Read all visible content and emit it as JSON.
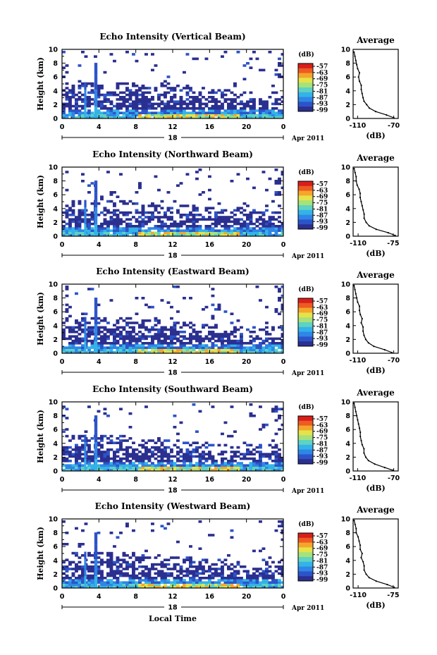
{
  "chart_data": [
    {
      "type": "heatmap",
      "title": "Echo Intensity (Vertical Beam)",
      "ylabel": "Height (km)",
      "x_ticks": [
        "0",
        "4",
        "8",
        "12",
        "16",
        "20",
        "0"
      ],
      "y_ticks": [
        "0",
        "2",
        "4",
        "6",
        "8",
        "10"
      ],
      "xlim": [
        0,
        24
      ],
      "ylim": [
        0,
        10
      ],
      "date_day": "18",
      "date_label": "Apr 2011",
      "colorbar": {
        "unit": "(dB)",
        "ticks": [
          "-57",
          "-63",
          "-69",
          "-75",
          "-81",
          "-87",
          "-93",
          "-99"
        ]
      },
      "profile": {
        "title": "Average",
        "xlabel": "(dB)",
        "x_ticks": [
          "-110",
          "-70"
        ],
        "xlim": [
          -115,
          -65
        ],
        "ylim": [
          0,
          10
        ],
        "y_ticks": [
          "0",
          "2",
          "4",
          "6",
          "8",
          "10"
        ],
        "points": [
          [
            -70,
            0.1
          ],
          [
            -78,
            0.5
          ],
          [
            -90,
            1.0
          ],
          [
            -97,
            1.5
          ],
          [
            -100,
            2.0
          ],
          [
            -103,
            2.5
          ],
          [
            -104,
            3.0
          ],
          [
            -105,
            3.6
          ],
          [
            -106,
            4.2
          ],
          [
            -106,
            4.8
          ],
          [
            -108,
            5.4
          ],
          [
            -109,
            6.0
          ],
          [
            -108,
            6.6
          ],
          [
            -110,
            7.2
          ],
          [
            -111,
            7.8
          ],
          [
            -112,
            8.4
          ],
          [
            -113,
            9.0
          ],
          [
            -114,
            9.6
          ]
        ]
      }
    },
    {
      "type": "heatmap",
      "title": "Echo Intensity (Northward Beam)",
      "ylabel": "Height (km)",
      "x_ticks": [
        "0",
        "4",
        "8",
        "12",
        "16",
        "20",
        "0"
      ],
      "y_ticks": [
        "0",
        "2",
        "4",
        "6",
        "8",
        "10"
      ],
      "xlim": [
        0,
        24
      ],
      "ylim": [
        0,
        10
      ],
      "date_day": "18",
      "date_label": "Apr 2011",
      "colorbar": {
        "unit": "(dB)",
        "ticks": [
          "-57",
          "-63",
          "-69",
          "-75",
          "-81",
          "-87",
          "-93",
          "-99"
        ]
      },
      "profile": {
        "title": "Average",
        "xlabel": "(dB)",
        "x_ticks": [
          "-110",
          "-75"
        ],
        "xlim": [
          -115,
          -70
        ],
        "ylim": [
          0,
          10
        ],
        "y_ticks": [
          "0",
          "2",
          "4",
          "6",
          "8",
          "10"
        ],
        "points": [
          [
            -73,
            0.1
          ],
          [
            -80,
            0.5
          ],
          [
            -92,
            1.0
          ],
          [
            -99,
            1.5
          ],
          [
            -102,
            2.0
          ],
          [
            -104,
            2.6
          ],
          [
            -104,
            3.2
          ],
          [
            -105,
            3.8
          ],
          [
            -106,
            4.4
          ],
          [
            -107,
            5.0
          ],
          [
            -108,
            5.6
          ],
          [
            -108,
            6.2
          ],
          [
            -109,
            6.8
          ],
          [
            -111,
            7.4
          ],
          [
            -112,
            8.0
          ],
          [
            -112,
            8.6
          ],
          [
            -113,
            9.2
          ],
          [
            -114,
            9.8
          ]
        ]
      }
    },
    {
      "type": "heatmap",
      "title": "Echo Intensity (Eastward Beam)",
      "ylabel": "Height (km)",
      "x_ticks": [
        "0",
        "4",
        "8",
        "12",
        "16",
        "20",
        "0"
      ],
      "y_ticks": [
        "0",
        "2",
        "4",
        "6",
        "8",
        "10"
      ],
      "xlim": [
        0,
        24
      ],
      "ylim": [
        0,
        10
      ],
      "date_day": "18",
      "date_label": "Apr 2011",
      "colorbar": {
        "unit": "(dB)",
        "ticks": [
          "-57",
          "-63",
          "-69",
          "-75",
          "-81",
          "-87",
          "-93",
          "-99"
        ]
      },
      "profile": {
        "title": "Average",
        "xlabel": "(dB)",
        "x_ticks": [
          "-110",
          "-70"
        ],
        "xlim": [
          -115,
          -65
        ],
        "ylim": [
          0,
          10
        ],
        "y_ticks": [
          "0",
          "2",
          "4",
          "6",
          "8",
          "10"
        ],
        "points": [
          [
            -72,
            0.1
          ],
          [
            -80,
            0.5
          ],
          [
            -92,
            1.0
          ],
          [
            -98,
            1.5
          ],
          [
            -101,
            2.0
          ],
          [
            -103,
            2.6
          ],
          [
            -104,
            3.2
          ],
          [
            -104,
            3.8
          ],
          [
            -106,
            4.4
          ],
          [
            -105,
            5.0
          ],
          [
            -107,
            5.6
          ],
          [
            -108,
            6.2
          ],
          [
            -108,
            6.8
          ],
          [
            -110,
            7.4
          ],
          [
            -111,
            8.0
          ],
          [
            -112,
            8.6
          ],
          [
            -113,
            9.2
          ],
          [
            -114,
            9.8
          ]
        ]
      }
    },
    {
      "type": "heatmap",
      "title": "Echo Intensity (Southward Beam)",
      "ylabel": "Height (km)",
      "x_ticks": [
        "0",
        "4",
        "8",
        "12",
        "16",
        "20",
        "0"
      ],
      "y_ticks": [
        "0",
        "2",
        "4",
        "6",
        "8",
        "10"
      ],
      "xlim": [
        0,
        24
      ],
      "ylim": [
        0,
        10
      ],
      "date_day": "18",
      "date_label": "Apr 2011",
      "colorbar": {
        "unit": "(dB)",
        "ticks": [
          "-57",
          "-63",
          "-69",
          "-75",
          "-81",
          "-87",
          "-93",
          "-99"
        ]
      },
      "profile": {
        "title": "Average",
        "xlabel": "(dB)",
        "x_ticks": [
          "-110",
          "-70"
        ],
        "xlim": [
          -115,
          -65
        ],
        "ylim": [
          0,
          10
        ],
        "y_ticks": [
          "0",
          "2",
          "4",
          "6",
          "8",
          "10"
        ],
        "points": [
          [
            -71,
            0.1
          ],
          [
            -80,
            0.5
          ],
          [
            -91,
            1.0
          ],
          [
            -98,
            1.5
          ],
          [
            -101,
            2.0
          ],
          [
            -103,
            2.6
          ],
          [
            -103,
            3.2
          ],
          [
            -105,
            3.8
          ],
          [
            -106,
            4.4
          ],
          [
            -107,
            5.0
          ],
          [
            -107,
            5.6
          ],
          [
            -108,
            6.2
          ],
          [
            -109,
            6.8
          ],
          [
            -110,
            7.4
          ],
          [
            -111,
            8.0
          ],
          [
            -112,
            8.6
          ],
          [
            -113,
            9.2
          ],
          [
            -114,
            9.8
          ]
        ]
      }
    },
    {
      "type": "heatmap",
      "title": "Echo Intensity (Westward Beam)",
      "ylabel": "Height (km)",
      "x_ticks": [
        "0",
        "4",
        "8",
        "12",
        "16",
        "20",
        "0"
      ],
      "y_ticks": [
        "0",
        "2",
        "4",
        "6",
        "8",
        "10"
      ],
      "xlim": [
        0,
        24
      ],
      "ylim": [
        0,
        10
      ],
      "date_day": "18",
      "date_label": "Apr 2011",
      "xlabel": "Local Time",
      "colorbar": {
        "unit": "(dB)",
        "ticks": [
          "-57",
          "-63",
          "-69",
          "-75",
          "-81",
          "-87",
          "-93",
          "-99"
        ]
      },
      "profile": {
        "title": "Average",
        "xlabel": "(dB)",
        "x_ticks": [
          "-110",
          "-75"
        ],
        "xlim": [
          -115,
          -70
        ],
        "ylim": [
          0,
          10
        ],
        "y_ticks": [
          "0",
          "2",
          "4",
          "6",
          "8",
          "10"
        ],
        "points": [
          [
            -74,
            0.1
          ],
          [
            -81,
            0.5
          ],
          [
            -92,
            1.0
          ],
          [
            -99,
            1.5
          ],
          [
            -102,
            2.0
          ],
          [
            -104,
            2.6
          ],
          [
            -104,
            3.2
          ],
          [
            -105,
            3.8
          ],
          [
            -107,
            4.4
          ],
          [
            -106,
            5.0
          ],
          [
            -108,
            5.6
          ],
          [
            -108,
            6.2
          ],
          [
            -109,
            6.8
          ],
          [
            -110,
            7.4
          ],
          [
            -112,
            8.0
          ],
          [
            -112,
            8.6
          ],
          [
            -113,
            9.2
          ],
          [
            -114,
            9.8
          ]
        ]
      }
    }
  ],
  "colors": {
    "scale": [
      "#2b2f8f",
      "#2c54c8",
      "#2f86e6",
      "#33b3e8",
      "#5fd2c2",
      "#a6e27a",
      "#e7e24a",
      "#f4a62b",
      "#ee5b22",
      "#d81f1b"
    ]
  }
}
